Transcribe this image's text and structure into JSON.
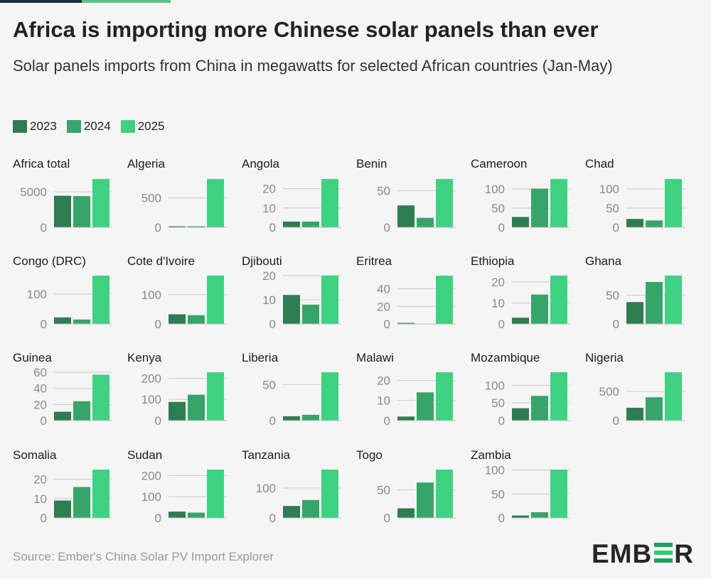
{
  "header": {
    "title": "Africa is importing more Chinese solar panels than ever",
    "subtitle": "Solar panels imports from China in megawatts for selected African countries (Jan-May)"
  },
  "legend": [
    {
      "label": "2023",
      "color": "#2e7d52"
    },
    {
      "label": "2024",
      "color": "#36a56a"
    },
    {
      "label": "2025",
      "color": "#3ed282"
    }
  ],
  "footer": {
    "source": "Source: Ember's China Solar PV Import Explorer",
    "logo_left": "EMB",
    "logo_right": "R",
    "logo_bar_colors": [
      "#1f9d64",
      "#2ecc71",
      "#1f9d64"
    ]
  },
  "chart_data": [
    {
      "type": "bar",
      "title": "Africa total",
      "categories": [
        "2023",
        "2024",
        "2025"
      ],
      "values": [
        4450,
        4400,
        6800
      ],
      "ylim": [
        0,
        6800
      ],
      "ticks": [
        0,
        5000
      ],
      "tick_labels": [
        "0",
        "5000"
      ]
    },
    {
      "type": "bar",
      "title": "Algeria",
      "categories": [
        "2023",
        "2024",
        "2025"
      ],
      "values": [
        3,
        10,
        820
      ],
      "ylim": [
        0,
        820
      ],
      "ticks": [
        0,
        500
      ],
      "tick_labels": [
        "0",
        "500"
      ]
    },
    {
      "type": "bar",
      "title": "Angola",
      "categories": [
        "2023",
        "2024",
        "2025"
      ],
      "values": [
        3,
        3,
        25
      ],
      "ylim": [
        0,
        25
      ],
      "ticks": [
        0,
        10,
        20
      ],
      "tick_labels": [
        "0",
        "10",
        "20"
      ]
    },
    {
      "type": "bar",
      "title": "Benin",
      "categories": [
        "2023",
        "2024",
        "2025"
      ],
      "values": [
        30,
        13,
        66
      ],
      "ylim": [
        0,
        66
      ],
      "ticks": [
        0,
        50
      ],
      "tick_labels": [
        "0",
        "50"
      ]
    },
    {
      "type": "bar",
      "title": "Cameroon",
      "categories": [
        "2023",
        "2024",
        "2025"
      ],
      "values": [
        27,
        101,
        126
      ],
      "ylim": [
        0,
        126
      ],
      "ticks": [
        0,
        50,
        100
      ],
      "tick_labels": [
        "0",
        "50",
        "100"
      ]
    },
    {
      "type": "bar",
      "title": "Chad",
      "categories": [
        "2023",
        "2024",
        "2025"
      ],
      "values": [
        22,
        18,
        126
      ],
      "ylim": [
        0,
        126
      ],
      "ticks": [
        0,
        50,
        100
      ],
      "tick_labels": [
        "0",
        "50",
        "100"
      ]
    },
    {
      "type": "bar",
      "title": "Congo (DRC)",
      "categories": [
        "2023",
        "2024",
        "2025"
      ],
      "values": [
        22,
        15,
        162
      ],
      "ylim": [
        0,
        162
      ],
      "ticks": [
        0,
        100
      ],
      "tick_labels": [
        "0",
        "100"
      ]
    },
    {
      "type": "bar",
      "title": "Cote d'Ivoire",
      "categories": [
        "2023",
        "2024",
        "2025"
      ],
      "values": [
        33,
        30,
        165
      ],
      "ylim": [
        0,
        165
      ],
      "ticks": [
        0,
        100
      ],
      "tick_labels": [
        "0",
        "100"
      ]
    },
    {
      "type": "bar",
      "title": "Djibouti",
      "categories": [
        "2023",
        "2024",
        "2025"
      ],
      "values": [
        12,
        8,
        20
      ],
      "ylim": [
        0,
        20
      ],
      "ticks": [
        0,
        10,
        20
      ],
      "tick_labels": [
        "0",
        "10",
        "20"
      ]
    },
    {
      "type": "bar",
      "title": "Eritrea",
      "categories": [
        "2023",
        "2024",
        "2025"
      ],
      "values": [
        1,
        0,
        55
      ],
      "ylim": [
        0,
        55
      ],
      "ticks": [
        0,
        20,
        40
      ],
      "tick_labels": [
        "0",
        "20",
        "40"
      ]
    },
    {
      "type": "bar",
      "title": "Ethiopia",
      "categories": [
        "2023",
        "2024",
        "2025"
      ],
      "values": [
        3,
        14,
        23
      ],
      "ylim": [
        0,
        23
      ],
      "ticks": [
        0,
        10,
        20
      ],
      "tick_labels": [
        "0",
        "10",
        "20"
      ]
    },
    {
      "type": "bar",
      "title": "Ghana",
      "categories": [
        "2023",
        "2024",
        "2025"
      ],
      "values": [
        38,
        73,
        84
      ],
      "ylim": [
        0,
        84
      ],
      "ticks": [
        0,
        50
      ],
      "tick_labels": [
        "0",
        "50"
      ]
    },
    {
      "type": "bar",
      "title": "Guinea",
      "categories": [
        "2023",
        "2024",
        "2025"
      ],
      "values": [
        11,
        24,
        57
      ],
      "ylim": [
        0,
        60
      ],
      "ticks": [
        0,
        20,
        40,
        60
      ],
      "tick_labels": [
        "0",
        "20",
        "40",
        "60"
      ]
    },
    {
      "type": "bar",
      "title": "Kenya",
      "categories": [
        "2023",
        "2024",
        "2025"
      ],
      "values": [
        88,
        122,
        228
      ],
      "ylim": [
        0,
        228
      ],
      "ticks": [
        0,
        100,
        200
      ],
      "tick_labels": [
        "0",
        "100",
        "200"
      ]
    },
    {
      "type": "bar",
      "title": "Liberia",
      "categories": [
        "2023",
        "2024",
        "2025"
      ],
      "values": [
        6,
        8,
        67
      ],
      "ylim": [
        0,
        67
      ],
      "ticks": [
        0,
        50
      ],
      "tick_labels": [
        "0",
        "50"
      ]
    },
    {
      "type": "bar",
      "title": "Malawi",
      "categories": [
        "2023",
        "2024",
        "2025"
      ],
      "values": [
        2,
        14,
        24
      ],
      "ylim": [
        0,
        24
      ],
      "ticks": [
        0,
        10,
        20
      ],
      "tick_labels": [
        "0",
        "10",
        "20"
      ]
    },
    {
      "type": "bar",
      "title": "Mozambique",
      "categories": [
        "2023",
        "2024",
        "2025"
      ],
      "values": [
        35,
        70,
        137
      ],
      "ylim": [
        0,
        137
      ],
      "ticks": [
        0,
        50,
        100
      ],
      "tick_labels": [
        "0",
        "50",
        "100"
      ]
    },
    {
      "type": "bar",
      "title": "Nigeria",
      "categories": [
        "2023",
        "2024",
        "2025"
      ],
      "values": [
        220,
        400,
        830
      ],
      "ylim": [
        0,
        830
      ],
      "ticks": [
        0,
        500
      ],
      "tick_labels": [
        "0",
        "500"
      ]
    },
    {
      "type": "bar",
      "title": "Somalia",
      "categories": [
        "2023",
        "2024",
        "2025"
      ],
      "values": [
        9,
        16,
        25
      ],
      "ylim": [
        0,
        25
      ],
      "ticks": [
        0,
        10,
        20
      ],
      "tick_labels": [
        "0",
        "10",
        "20"
      ]
    },
    {
      "type": "bar",
      "title": "Sudan",
      "categories": [
        "2023",
        "2024",
        "2025"
      ],
      "values": [
        30,
        25,
        228
      ],
      "ylim": [
        0,
        228
      ],
      "ticks": [
        0,
        100,
        200
      ],
      "tick_labels": [
        "0",
        "100",
        "200"
      ]
    },
    {
      "type": "bar",
      "title": "Tanzania",
      "categories": [
        "2023",
        "2024",
        "2025"
      ],
      "values": [
        40,
        60,
        162
      ],
      "ylim": [
        0,
        162
      ],
      "ticks": [
        0,
        100
      ],
      "tick_labels": [
        "0",
        "100"
      ]
    },
    {
      "type": "bar",
      "title": "Togo",
      "categories": [
        "2023",
        "2024",
        "2025"
      ],
      "values": [
        17,
        63,
        86
      ],
      "ylim": [
        0,
        86
      ],
      "ticks": [
        0,
        50
      ],
      "tick_labels": [
        "0",
        "50"
      ]
    },
    {
      "type": "bar",
      "title": "Zambia",
      "categories": [
        "2023",
        "2024",
        "2025"
      ],
      "values": [
        5,
        12,
        101
      ],
      "ylim": [
        0,
        101
      ],
      "ticks": [
        0,
        50,
        100
      ],
      "tick_labels": [
        "0",
        "50",
        "100"
      ]
    }
  ]
}
